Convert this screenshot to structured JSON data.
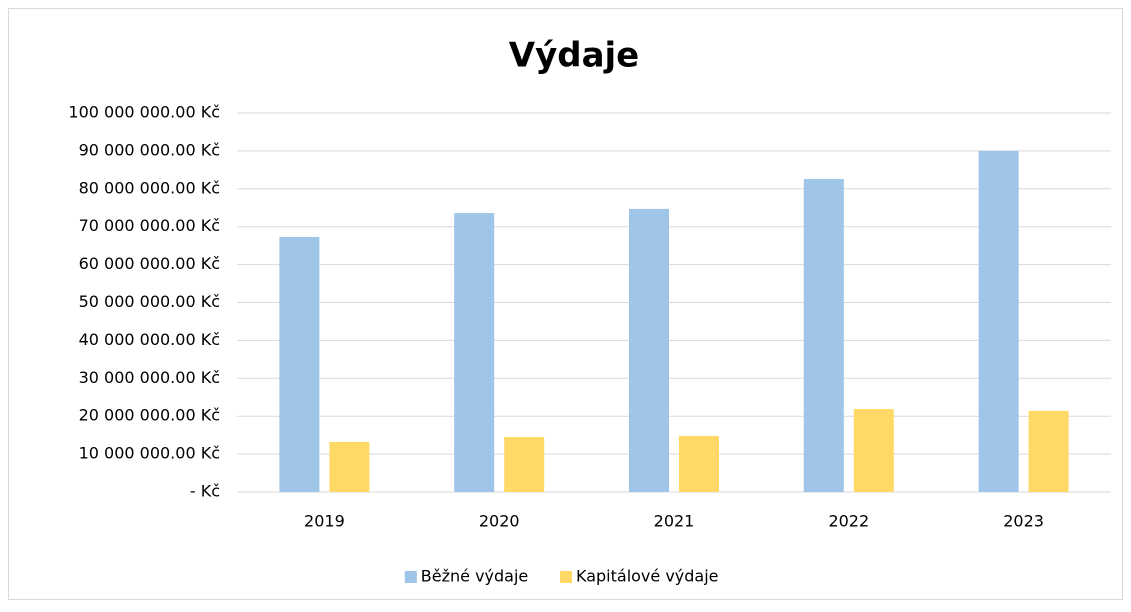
{
  "chart_data": {
    "type": "bar",
    "title": "Výdaje",
    "categories": [
      "2019",
      "2020",
      "2021",
      "2022",
      "2023"
    ],
    "series": [
      {
        "name": "Běžné výdaje",
        "color": "#9fc5e8",
        "values": [
          67300000,
          73600000,
          74700000,
          82600000,
          90000000
        ]
      },
      {
        "name": "Kapitálové výdaje",
        "color": "#ffd966",
        "values": [
          13200000,
          14500000,
          14800000,
          21900000,
          21400000
        ]
      }
    ],
    "ylim": [
      0,
      100000000
    ],
    "yticks": [
      {
        "value": 0,
        "label": "-   Kč"
      },
      {
        "value": 10000000,
        "label": "10 000 000.00 Kč"
      },
      {
        "value": 20000000,
        "label": "20 000 000.00 Kč"
      },
      {
        "value": 30000000,
        "label": "30 000 000.00 Kč"
      },
      {
        "value": 40000000,
        "label": "40 000 000.00 Kč"
      },
      {
        "value": 50000000,
        "label": "50 000 000.00 Kč"
      },
      {
        "value": 60000000,
        "label": "60 000 000.00 Kč"
      },
      {
        "value": 70000000,
        "label": "70 000 000.00 Kč"
      },
      {
        "value": 80000000,
        "label": "80 000 000.00 Kč"
      },
      {
        "value": 90000000,
        "label": "90 000 000.00 Kč"
      },
      {
        "value": 100000000,
        "label": "100 000 000.00 Kč"
      }
    ],
    "grid": true,
    "legend": "bottom"
  }
}
